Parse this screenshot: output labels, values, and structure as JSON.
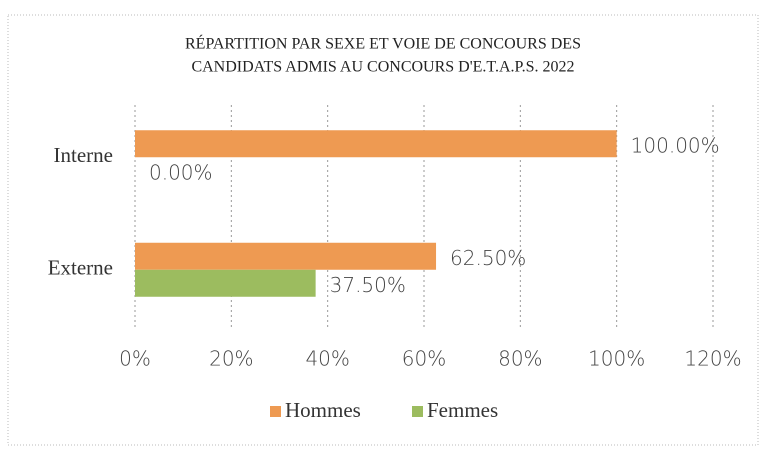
{
  "chart_data": {
    "type": "hbar",
    "title": [
      "RÉPARTITION PAR SEXE ET VOIE DE CONCOURS DES",
      "CANDIDATS ADMIS AU CONCOURS D'E.T.A.P.S. 2022"
    ],
    "categories": [
      "Interne",
      "Externe"
    ],
    "series": [
      {
        "name": "Hommes",
        "color": "#ee9a52",
        "values": [
          100,
          62.5
        ],
        "value_labels": [
          "100.00%",
          "62.50%"
        ]
      },
      {
        "name": "Femmes",
        "color": "#9cbc5f",
        "values": [
          0,
          37.5
        ],
        "value_labels": [
          "0.00%",
          "37.50%"
        ]
      }
    ],
    "xlim": [
      0,
      120
    ],
    "xticks": [
      {
        "value": 0,
        "label": "0%"
      },
      {
        "value": 20,
        "label": "20%"
      },
      {
        "value": 40,
        "label": "40%"
      },
      {
        "value": 60,
        "label": "60%"
      },
      {
        "value": 80,
        "label": "80%"
      },
      {
        "value": 100,
        "label": "100%"
      },
      {
        "value": 120,
        "label": "120%"
      }
    ],
    "grid": true,
    "legend": "bottom"
  }
}
